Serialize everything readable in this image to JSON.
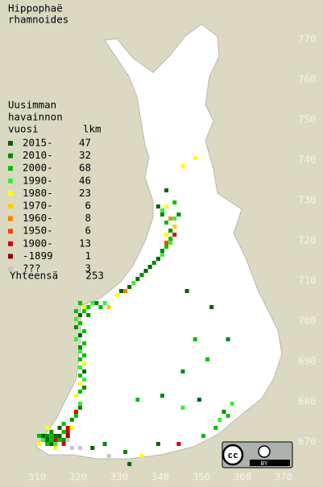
{
  "map": {
    "title": [
      "Hippophaë",
      "rhamnoides"
    ],
    "legend_header": [
      "Uusimman",
      "havainnon",
      "vuosi"
    ],
    "count_header": "lkm",
    "legend": [
      {
        "label": "2015-",
        "count": 47,
        "color": "#006400"
      },
      {
        "label": "2010-",
        "count": 32,
        "color": "#008c00"
      },
      {
        "label": "2000-",
        "count": 68,
        "color": "#00c000"
      },
      {
        "label": "1990-",
        "count": 46,
        "color": "#33f033"
      },
      {
        "label": "1980-",
        "count": 23,
        "color": "#ffff00"
      },
      {
        "label": "1970-",
        "count": 6,
        "color": "#ffcc00"
      },
      {
        "label": "1960-",
        "count": 8,
        "color": "#ff8000"
      },
      {
        "label": "1950-",
        "count": 6,
        "color": "#ff4400"
      },
      {
        "label": "1900-",
        "count": 13,
        "color": "#dd0000"
      },
      {
        "label": "-1899",
        "count": 1,
        "color": "#990000"
      },
      {
        "label": "???",
        "count": 3,
        "color": "#c8c8c8"
      }
    ],
    "total_label": "Yhteensä",
    "total": 253,
    "xticks": [
      310,
      320,
      330,
      340,
      350,
      360,
      370
    ],
    "yticks": [
      670,
      680,
      690,
      700,
      710,
      720,
      730,
      740,
      750,
      760,
      770
    ],
    "license": [
      "cc",
      "BY"
    ],
    "squares": [
      [
        310,
        671,
        2
      ],
      [
        311,
        671,
        0
      ],
      [
        312,
        671,
        1
      ],
      [
        313,
        671,
        2
      ],
      [
        314,
        671,
        0
      ],
      [
        315,
        671,
        0
      ],
      [
        311,
        670,
        3
      ],
      [
        312,
        670,
        0
      ],
      [
        313,
        670,
        2
      ],
      [
        314,
        670,
        8
      ],
      [
        315,
        670,
        2
      ],
      [
        316,
        670,
        1
      ],
      [
        310,
        669,
        4
      ],
      [
        312,
        669,
        2
      ],
      [
        313,
        669,
        0
      ],
      [
        314,
        669,
        3
      ],
      [
        316,
        669,
        8
      ],
      [
        317,
        671,
        9
      ],
      [
        317,
        672,
        8
      ],
      [
        316,
        672,
        2
      ],
      [
        315,
        673,
        0
      ],
      [
        316,
        674,
        2
      ],
      [
        317,
        673,
        8
      ],
      [
        318,
        673,
        4
      ],
      [
        318,
        675,
        1
      ],
      [
        319,
        676,
        2
      ],
      [
        319,
        677,
        8
      ],
      [
        320,
        678,
        1
      ],
      [
        320,
        679,
        3
      ],
      [
        313,
        672,
        1
      ],
      [
        312,
        673,
        4
      ],
      [
        314,
        668,
        4
      ],
      [
        318,
        668,
        10
      ],
      [
        320,
        668,
        10
      ],
      [
        317,
        670,
        10
      ],
      [
        319,
        681,
        4
      ],
      [
        320,
        682,
        2
      ],
      [
        321,
        683,
        1
      ],
      [
        320,
        684,
        4
      ],
      [
        321,
        685,
        3
      ],
      [
        320,
        686,
        2
      ],
      [
        321,
        687,
        0
      ],
      [
        320,
        688,
        3
      ],
      [
        321,
        689,
        4
      ],
      [
        320,
        690,
        2
      ],
      [
        321,
        691,
        2
      ],
      [
        320,
        692,
        3
      ],
      [
        320,
        693,
        1
      ],
      [
        321,
        694,
        2
      ],
      [
        319,
        695,
        3
      ],
      [
        320,
        696,
        0
      ],
      [
        321,
        697,
        2
      ],
      [
        319,
        698,
        1
      ],
      [
        320,
        699,
        2
      ],
      [
        319,
        700,
        3
      ],
      [
        320,
        701,
        0
      ],
      [
        321,
        702,
        2
      ],
      [
        322,
        703,
        2
      ],
      [
        323,
        704,
        3
      ],
      [
        324,
        704,
        1
      ],
      [
        325,
        703,
        2
      ],
      [
        326,
        704,
        3
      ],
      [
        327,
        703,
        5
      ],
      [
        321,
        703,
        4
      ],
      [
        319,
        702,
        2
      ],
      [
        322,
        701,
        1
      ],
      [
        320,
        704,
        2
      ],
      [
        329,
        706,
        4
      ],
      [
        330,
        707,
        0
      ],
      [
        331,
        707,
        6
      ],
      [
        332,
        708,
        0
      ],
      [
        333,
        709,
        3
      ],
      [
        334,
        710,
        0
      ],
      [
        335,
        711,
        1
      ],
      [
        336,
        712,
        0
      ],
      [
        337,
        713,
        0
      ],
      [
        338,
        714,
        1
      ],
      [
        339,
        715,
        0
      ],
      [
        340,
        716,
        3
      ],
      [
        340,
        717,
        1
      ],
      [
        341,
        718,
        2
      ],
      [
        341,
        719,
        7
      ],
      [
        342,
        719,
        3
      ],
      [
        342,
        720,
        2
      ],
      [
        341,
        721,
        4
      ],
      [
        343,
        721,
        8
      ],
      [
        342,
        722,
        1
      ],
      [
        343,
        723,
        5
      ],
      [
        341,
        724,
        2
      ],
      [
        342,
        725,
        6
      ],
      [
        343,
        725,
        3
      ],
      [
        344,
        726,
        1
      ],
      [
        340,
        727,
        3
      ],
      [
        339,
        728,
        0
      ],
      [
        341,
        728,
        4
      ],
      [
        340,
        726,
        1
      ],
      [
        343,
        729,
        2
      ],
      [
        345,
        738,
        4
      ],
      [
        341,
        732,
        0
      ],
      [
        348,
        740,
        4
      ],
      [
        352,
        703,
        0
      ],
      [
        346,
        707,
        0
      ],
      [
        348,
        695,
        2
      ],
      [
        356,
        695,
        1
      ],
      [
        351,
        690,
        2
      ],
      [
        345,
        687,
        1
      ],
      [
        349,
        680,
        0
      ],
      [
        345,
        678,
        3
      ],
      [
        340,
        681,
        1
      ],
      [
        334,
        680,
        2
      ],
      [
        339,
        669,
        0
      ],
      [
        335,
        666,
        4
      ],
      [
        344,
        669,
        8
      ],
      [
        350,
        671,
        2
      ],
      [
        354,
        675,
        3
      ],
      [
        356,
        676,
        2
      ],
      [
        355,
        677,
        1
      ],
      [
        357,
        679,
        3
      ],
      [
        353,
        673,
        2
      ],
      [
        331,
        667,
        1
      ],
      [
        327,
        666,
        10
      ],
      [
        332,
        664,
        0
      ],
      [
        326,
        669,
        1
      ],
      [
        323,
        668,
        0
      ]
    ]
  }
}
